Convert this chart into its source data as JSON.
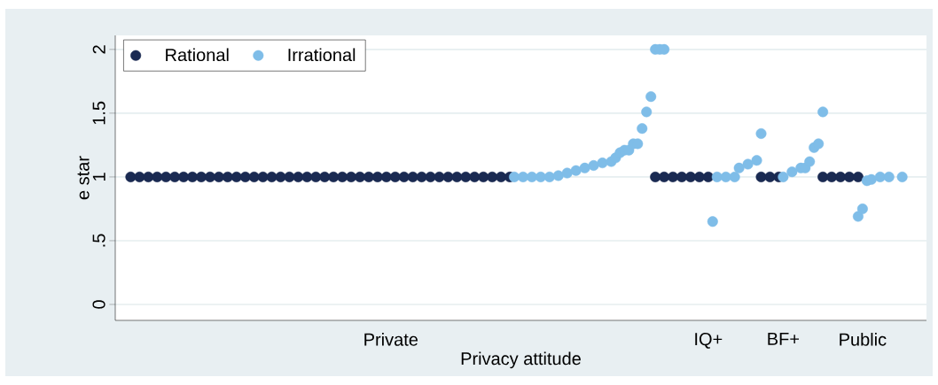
{
  "chart_data": {
    "type": "scatter",
    "xlabel": "Privacy attitude",
    "ylabel": "e star",
    "ylim": [
      -0.125,
      2.11
    ],
    "yticks": [
      0,
      {
        "value": 0.5,
        "label": ".5"
      },
      1,
      1.5,
      2
    ],
    "grid": "y",
    "legend": "top left",
    "marker": "circle",
    "categories": [
      null,
      null,
      null,
      null,
      null,
      null,
      null,
      null,
      null,
      null,
      null,
      null,
      null,
      null,
      null,
      null,
      null,
      null,
      null,
      null,
      null,
      null,
      null,
      null,
      null,
      null,
      null,
      null,
      null,
      null,
      null,
      null,
      null,
      null,
      null,
      null,
      null,
      null,
      null,
      null,
      null,
      null,
      null,
      null,
      null,
      null,
      null,
      null,
      null,
      null,
      null,
      null,
      null,
      null,
      null,
      null,
      null,
      null,
      null,
      null,
      null,
      null,
      "Private",
      null,
      null,
      null,
      null,
      null,
      null,
      null,
      null,
      null,
      null,
      null,
      null,
      null,
      null,
      null,
      null,
      null,
      null,
      null,
      null,
      null,
      null,
      null,
      null,
      null,
      null,
      null,
      null,
      null,
      null,
      null,
      null,
      null,
      null,
      null,
      null,
      null,
      null,
      null,
      null,
      null,
      null,
      null,
      null,
      null,
      null,
      null,
      null,
      null,
      null,
      null,
      null,
      null,
      null,
      null,
      null,
      null,
      null,
      null,
      null,
      null,
      null,
      null,
      null,
      null,
      null,
      null,
      null,
      null,
      null,
      null,
      "IQ+",
      null,
      null,
      null,
      null,
      null,
      null,
      null,
      null,
      null,
      null,
      null,
      null,
      null,
      null,
      null,
      null,
      "BF+",
      null,
      null,
      null,
      null,
      null,
      null,
      null,
      null,
      null,
      null,
      null,
      null,
      null,
      null,
      null,
      null,
      null,
      "Public",
      null,
      null,
      null,
      null,
      null,
      null,
      null,
      null,
      null,
      null,
      null,
      null,
      null,
      null
    ],
    "series": [
      {
        "name": "Rational",
        "color": "#1a2a52",
        "values": [
          null,
          null,
          null,
          1,
          null,
          1,
          null,
          1,
          null,
          1,
          null,
          1,
          null,
          1,
          null,
          1,
          null,
          1,
          null,
          1,
          null,
          1,
          null,
          1,
          null,
          1,
          null,
          1,
          null,
          1,
          null,
          1,
          null,
          1,
          null,
          1,
          null,
          1,
          null,
          1,
          null,
          1,
          null,
          1,
          null,
          1,
          null,
          1,
          null,
          1,
          null,
          1,
          null,
          1,
          null,
          1,
          null,
          1,
          null,
          1,
          null,
          1,
          null,
          1,
          null,
          1,
          null,
          1,
          null,
          1,
          null,
          1,
          null,
          1,
          null,
          1,
          null,
          1,
          null,
          1,
          null,
          1,
          null,
          1,
          null,
          1,
          null,
          1,
          null,
          1,
          null,
          null,
          null,
          null,
          null,
          null,
          null,
          null,
          null,
          null,
          null,
          null,
          null,
          null,
          null,
          null,
          null,
          null,
          null,
          null,
          null,
          null,
          null,
          null,
          null,
          null,
          null,
          null,
          null,
          null,
          null,
          null,
          1,
          null,
          1,
          null,
          1,
          null,
          1,
          null,
          1,
          null,
          1,
          null,
          1,
          null,
          null,
          null,
          null,
          null,
          null,
          null,
          null,
          null,
          null,
          null,
          1,
          null,
          1,
          null,
          1,
          null,
          null,
          null,
          null,
          null,
          null,
          null,
          null,
          null,
          1,
          null,
          1,
          null,
          1,
          null,
          1,
          null,
          1,
          null,
          null,
          null,
          null,
          null,
          null,
          null,
          null,
          null,
          null,
          null,
          null,
          null,
          null,
          null
        ]
      },
      {
        "name": "Irrational",
        "color": "#7fbde8",
        "values": [
          null,
          null,
          null,
          null,
          null,
          null,
          null,
          null,
          null,
          null,
          null,
          null,
          null,
          null,
          null,
          null,
          null,
          null,
          null,
          null,
          null,
          null,
          null,
          null,
          null,
          null,
          null,
          null,
          null,
          null,
          null,
          null,
          null,
          null,
          null,
          null,
          null,
          null,
          null,
          null,
          null,
          null,
          null,
          null,
          null,
          null,
          null,
          null,
          null,
          null,
          null,
          null,
          null,
          null,
          null,
          null,
          null,
          null,
          null,
          null,
          null,
          null,
          null,
          null,
          null,
          null,
          null,
          null,
          null,
          null,
          null,
          null,
          null,
          null,
          null,
          null,
          null,
          null,
          null,
          null,
          null,
          null,
          null,
          null,
          null,
          null,
          null,
          null,
          null,
          null,
          1,
          null,
          1,
          null,
          1,
          null,
          1,
          null,
          1,
          null,
          1.01,
          null,
          1.03,
          null,
          1.05,
          null,
          1.07,
          null,
          1.09,
          null,
          1.11,
          null,
          1.12,
          1.15,
          1.19,
          1.21,
          1.21,
          1.26,
          1.26,
          1.38,
          1.51,
          1.63,
          2,
          2,
          2,
          null,
          null,
          null,
          null,
          null,
          null,
          null,
          null,
          null,
          null,
          0.65,
          1,
          null,
          1,
          null,
          1,
          1.07,
          null,
          1.1,
          null,
          1.13,
          1.34,
          null,
          null,
          null,
          null,
          1,
          null,
          1.04,
          null,
          1.07,
          1.07,
          1.12,
          1.23,
          1.26,
          1.51,
          null,
          null,
          null,
          null,
          null,
          null,
          null,
          0.69,
          0.75,
          0.97,
          0.98,
          null,
          1,
          null,
          1,
          null,
          null,
          1,
          null,
          null,
          null,
          null,
          null
        ]
      }
    ]
  }
}
